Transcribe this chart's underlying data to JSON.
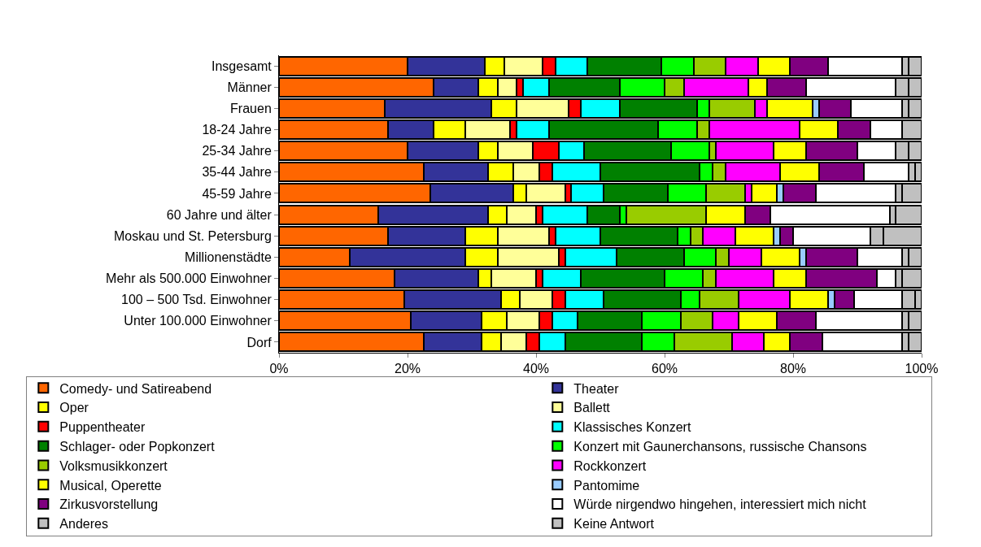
{
  "chart_data": {
    "type": "bar",
    "orientation": "horizontal",
    "stacked": true,
    "categories": [
      "Insgesamt",
      "Männer",
      "Frauen",
      "18-24 Jahre",
      "25-34 Jahre",
      "35-44 Jahre",
      "45-59 Jahre",
      "60 Jahre und älter",
      "Moskau und St. Petersburg",
      "Millionenstädte",
      "Mehr als 500.000 Einwohner",
      "100 – 500 Tsd. Einwohner",
      "Unter 100.000 Einwohner",
      "Dorf"
    ],
    "series": [
      {
        "name": "Comedy- und Satireabend",
        "color": "#ff6600",
        "values": [
          20,
          24,
          16.5,
          17,
          20,
          22.5,
          23.5,
          15.5,
          17,
          11,
          18,
          19.5,
          20.5,
          22.5
        ]
      },
      {
        "name": "Theater",
        "color": "#333399",
        "values": [
          12,
          7,
          16.5,
          7,
          11,
          10,
          13,
          17,
          12,
          18,
          13,
          15,
          11,
          9
        ]
      },
      {
        "name": "Oper",
        "color": "#ffff00",
        "values": [
          3,
          3,
          4,
          5,
          3,
          4,
          2,
          3,
          5,
          5,
          2,
          3,
          4,
          3
        ]
      },
      {
        "name": "Ballett",
        "color": "#ffff99",
        "values": [
          6,
          3,
          8,
          7,
          5.5,
          4,
          6,
          4.5,
          8,
          9.5,
          7,
          5,
          5,
          4
        ]
      },
      {
        "name": "Puppentheater",
        "color": "#ff0000",
        "values": [
          2,
          1,
          2,
          1,
          4,
          2,
          1,
          1,
          1,
          1,
          1,
          2,
          2,
          2
        ]
      },
      {
        "name": "Klassisches Konzert",
        "color": "#00ffff",
        "values": [
          5,
          4,
          6,
          5,
          4,
          7.5,
          5,
          7,
          7,
          8,
          6,
          6,
          4,
          4
        ]
      },
      {
        "name": "Schlager- oder Popkonzert",
        "color": "#008000",
        "values": [
          11.5,
          11,
          12,
          17,
          13.5,
          15.5,
          10,
          5,
          12,
          10.5,
          13,
          12,
          10,
          12
        ]
      },
      {
        "name": "Konzert mit Gaunerchansons, russische Chansons",
        "color": "#00ff00",
        "values": [
          5,
          7,
          2,
          6,
          6,
          2,
          6,
          1,
          2,
          5,
          6,
          3,
          6,
          5
        ]
      },
      {
        "name": "Volksmusikkonzert",
        "color": "#99cc00",
        "values": [
          5,
          3,
          7,
          2,
          1,
          2,
          6,
          12.5,
          2,
          2,
          2,
          6,
          5,
          9
        ]
      },
      {
        "name": "Rockkonzert",
        "color": "#ff00ff",
        "values": [
          5,
          10,
          2,
          14,
          9,
          8.5,
          1,
          null,
          5,
          5,
          9,
          8,
          4,
          5
        ]
      },
      {
        "name": "Musical, Operette",
        "color": "#ffff00",
        "values": [
          5,
          3,
          7,
          6,
          5,
          6,
          4,
          6,
          6,
          6,
          5,
          6,
          6,
          4
        ]
      },
      {
        "name": "Pantomime",
        "color": "#99ccff",
        "values": [
          null,
          null,
          1,
          null,
          null,
          null,
          1,
          null,
          1,
          1,
          null,
          1,
          null,
          null
        ]
      },
      {
        "name": "Zirkusvorstellung",
        "color": "#800080",
        "values": [
          6,
          6,
          5,
          5,
          8,
          7,
          5,
          4,
          2,
          8,
          11,
          3,
          6,
          5
        ]
      },
      {
        "name": "Würde nirgendwo hingehen, interessiert mich nicht",
        "color": "#ffffff",
        "values": [
          11.5,
          14,
          8,
          5,
          6,
          7,
          12.5,
          18.5,
          12,
          7,
          3,
          7.5,
          13.5,
          12.5
        ]
      },
      {
        "name": "Anderes",
        "color": "#c0c0c0",
        "values": [
          1,
          2,
          1,
          3,
          2,
          1,
          1,
          1,
          2,
          1,
          1,
          2,
          1,
          1
        ]
      },
      {
        "name": "Keine Antwort",
        "color": "#c0c0c0",
        "values": [
          2,
          2,
          2,
          null,
          2,
          1,
          3,
          4,
          6,
          2,
          3,
          1,
          2,
          2
        ]
      }
    ],
    "xlim": [
      0,
      100
    ],
    "xticks": [
      {
        "value": 0,
        "label": "0%"
      },
      {
        "value": 20,
        "label": "20%"
      },
      {
        "value": 40,
        "label": "40%"
      },
      {
        "value": 60,
        "label": "60%"
      },
      {
        "value": 80,
        "label": "80%"
      },
      {
        "value": 100,
        "label": "100%"
      }
    ],
    "legend": "bottom"
  }
}
